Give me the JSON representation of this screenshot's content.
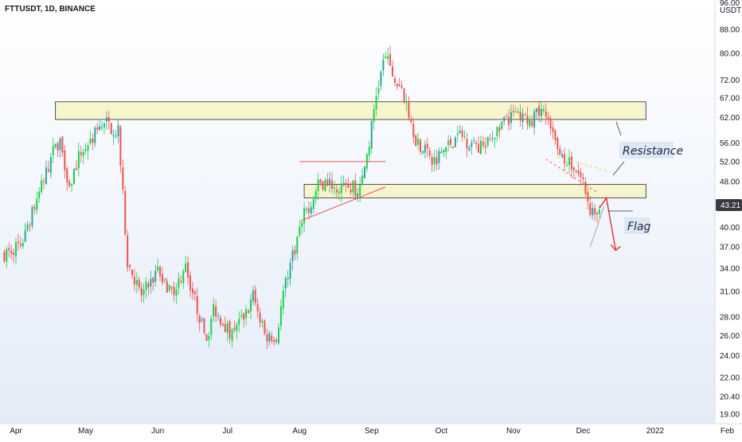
{
  "header": {
    "symbol": "FTTUSDT, 1D, BINANCE",
    "currency": "USDT",
    "partial_top_label": "96.00"
  },
  "colors": {
    "background_top": "#ffffff",
    "background_bottom": "#e3ebf8",
    "up": "#26a69a",
    "up_bright": "#1bd14b",
    "down": "#ef5350",
    "zone_fill": "#f6f3c6",
    "zone_stroke": "#2b2b2b",
    "flag_arrow": "#e0322f",
    "price_badge": "#383a42"
  },
  "chart_data": {
    "type": "candlestick",
    "title": "FTTUSDT, 1D, BINANCE",
    "y_scale": "log",
    "ylim": [
      18.3,
      99.0
    ],
    "x_months": [
      "Apr",
      "May",
      "Jun",
      "Jul",
      "Aug",
      "Sep",
      "Oct",
      "Nov",
      "Dec",
      "2022",
      "Feb"
    ],
    "y_ticks": [
      19.0,
      20.4,
      22.0,
      24.0,
      26.0,
      28.0,
      31.0,
      34.0,
      37.0,
      40.0,
      44.0,
      48.0,
      52.0,
      56.0,
      62.0,
      67.0,
      72.0,
      80.0,
      88.0
    ],
    "last_price": "43.21",
    "close_path": [
      [
        "2021-03-27",
        36.0
      ],
      [
        "2021-04-03",
        37.5
      ],
      [
        "2021-04-10",
        44.5
      ],
      [
        "2021-04-17",
        54.0
      ],
      [
        "2021-04-20",
        57.0
      ],
      [
        "2021-04-24",
        47.0
      ],
      [
        "2021-04-28",
        53.0
      ],
      [
        "2021-05-05",
        58.0
      ],
      [
        "2021-05-10",
        60.5
      ],
      [
        "2021-05-15",
        58.5
      ],
      [
        "2021-05-19",
        35.0
      ],
      [
        "2021-05-25",
        30.5
      ],
      [
        "2021-06-01",
        33.5
      ],
      [
        "2021-06-07",
        31.0
      ],
      [
        "2021-06-13",
        34.0
      ],
      [
        "2021-06-22",
        25.5
      ],
      [
        "2021-06-25",
        29.0
      ],
      [
        "2021-07-02",
        26.5
      ],
      [
        "2021-07-08",
        28.0
      ],
      [
        "2021-07-12",
        30.5
      ],
      [
        "2021-07-17",
        26.0
      ],
      [
        "2021-07-22",
        26.0
      ],
      [
        "2021-07-26",
        32.5
      ],
      [
        "2021-08-03",
        42.0
      ],
      [
        "2021-08-10",
        48.0
      ],
      [
        "2021-08-16",
        47.5
      ],
      [
        "2021-08-22",
        47.0
      ],
      [
        "2021-08-27",
        46.5
      ],
      [
        "2021-08-31",
        56.0
      ],
      [
        "2021-09-03",
        68.0
      ],
      [
        "2021-09-07",
        80.0
      ],
      [
        "2021-09-10",
        72.0
      ],
      [
        "2021-09-14",
        70.0
      ],
      [
        "2021-09-20",
        57.0
      ],
      [
        "2021-09-27",
        52.0
      ],
      [
        "2021-10-03",
        55.0
      ],
      [
        "2021-10-09",
        58.0
      ],
      [
        "2021-10-14",
        55.5
      ],
      [
        "2021-10-20",
        55.0
      ],
      [
        "2021-10-26",
        60.0
      ],
      [
        "2021-11-02",
        63.0
      ],
      [
        "2021-11-08",
        61.0
      ],
      [
        "2021-11-14",
        64.0
      ],
      [
        "2021-11-18",
        57.0
      ],
      [
        "2021-11-22",
        53.0
      ],
      [
        "2021-11-27",
        51.0
      ],
      [
        "2021-12-01",
        48.0
      ],
      [
        "2021-12-04",
        43.0
      ],
      [
        "2021-12-08",
        43.2
      ]
    ],
    "resistance_zones": [
      {
        "from": "2021-04-18",
        "to": "2021-12-28",
        "low": 61.5,
        "high": 66.0
      },
      {
        "from": "2021-08-03",
        "to": "2021-12-28",
        "low": 45.0,
        "high": 47.5
      }
    ],
    "annotations": [
      "Resistance",
      "Flag"
    ]
  }
}
